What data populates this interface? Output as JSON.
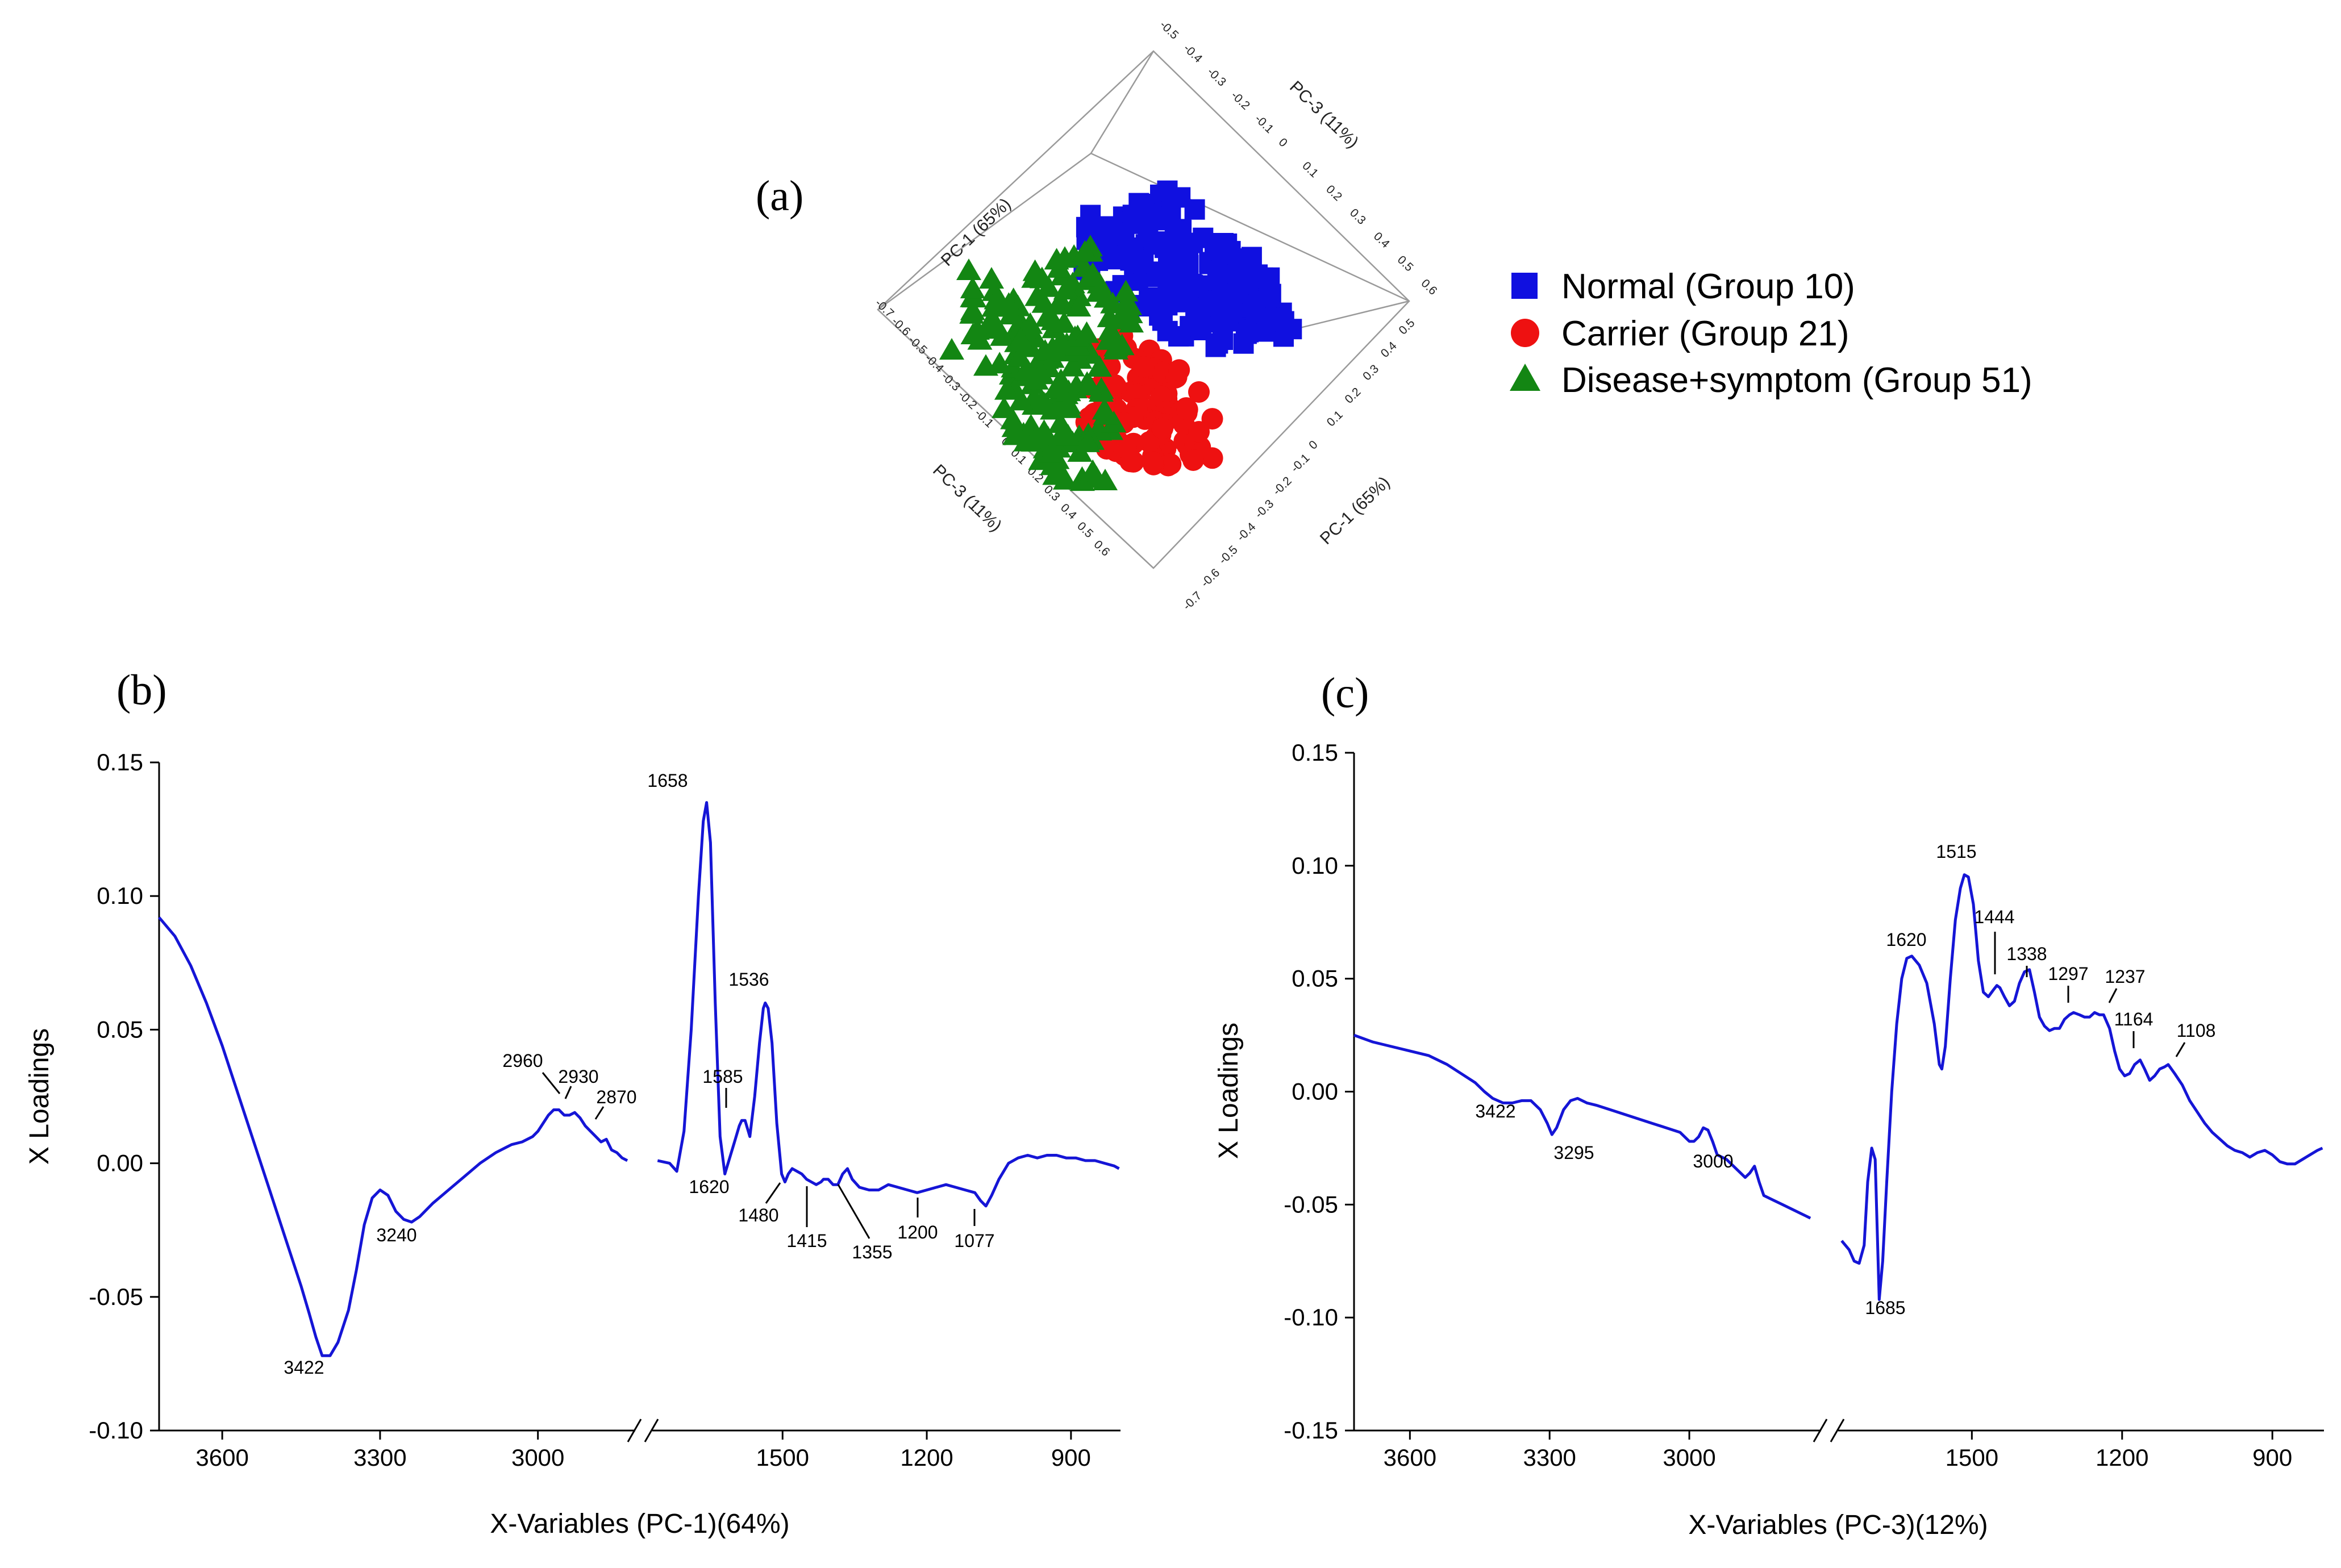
{
  "panel_labels": [
    "(a)",
    "(b)",
    "(c)"
  ],
  "legend": [
    {
      "label": "Normal (Group 10)",
      "color": "#1010e0",
      "marker": "square"
    },
    {
      "label": "Carrier (Group 21)",
      "color": "#ee1111",
      "marker": "circle"
    },
    {
      "label": "Disease+symptom (Group 51)",
      "color": "#138613",
      "marker": "triangle"
    }
  ],
  "chart_data": [
    {
      "type": "scatter",
      "panel": "(a)",
      "axes_labels": {
        "pc1_top": "PC-1 (65%)",
        "pc3_top": "PC-3 (11%)",
        "pc3_bottom": "PC-3 (11%)",
        "pc1_right": "PC-1 (65%)"
      },
      "tick_labels_top": [
        "-0.5",
        "-0.4",
        "-0.3",
        "-0.2",
        "-0.1",
        "0",
        "0.1",
        "0.2",
        "0.3",
        "0.4",
        "0.5",
        "0.6"
      ],
      "tick_labels_right": [
        "0.5",
        "0.4",
        "0.3",
        "0.2",
        "0.1",
        "0",
        "-0.1",
        "-0.2",
        "-0.3",
        "-0.4",
        "-0.5",
        "-0.6",
        "-0.7"
      ],
      "tick_labels_left": [
        "-0.7",
        "-0.6",
        "-0.5",
        "-0.4",
        "-0.3",
        "-0.2",
        "-0.1",
        "0",
        "0.1",
        "0.2",
        "0.3",
        "0.4",
        "0.5",
        "0.6"
      ],
      "series": [
        {
          "name": "Normal (Group 10)",
          "color": "#1010e0",
          "marker": "square"
        },
        {
          "name": "Carrier (Group 21)",
          "color": "#ee1111",
          "marker": "circle"
        },
        {
          "name": "Disease+symptom (Group 51)",
          "color": "#138613",
          "marker": "triangle"
        }
      ]
    },
    {
      "type": "line",
      "panel": "(b)",
      "xlabel": "X-Variables (PC-1)(64%)",
      "ylabel": "X Loadings",
      "ylim": [
        -0.1,
        0.15
      ],
      "yticks": [
        "0.15",
        "0.10",
        "0.05",
        "0.00",
        "-0.05",
        "-0.10"
      ],
      "xticks": [
        "3600",
        "3300",
        "3000",
        "1500",
        "1200",
        "900"
      ],
      "segments": [
        {
          "x": [
            3720,
            3690,
            3660,
            3630,
            3600,
            3570,
            3540,
            3510,
            3480,
            3450,
            3435,
            3422,
            3410,
            3395,
            3380,
            3360,
            3345,
            3330,
            3315,
            3300,
            3285,
            3270,
            3255,
            3240,
            3225,
            3200,
            3170,
            3140,
            3110,
            3080,
            3050,
            3030,
            3010,
            3000,
            2990,
            2980,
            2970,
            2960,
            2950,
            2940,
            2930,
            2920,
            2910,
            2900,
            2890,
            2880,
            2870,
            2860,
            2850,
            2840,
            2830
          ],
          "y": [
            0.092,
            0.085,
            0.074,
            0.06,
            0.044,
            0.026,
            0.008,
            -0.01,
            -0.028,
            -0.046,
            -0.056,
            -0.065,
            -0.072,
            -0.072,
            -0.067,
            -0.055,
            -0.04,
            -0.023,
            -0.013,
            -0.01,
            -0.012,
            -0.018,
            -0.021,
            -0.022,
            -0.02,
            -0.015,
            -0.01,
            -0.005,
            0.0,
            0.004,
            0.007,
            0.008,
            0.01,
            0.012,
            0.015,
            0.018,
            0.02,
            0.02,
            0.018,
            0.018,
            0.019,
            0.017,
            0.014,
            0.012,
            0.01,
            0.008,
            0.009,
            0.005,
            0.004,
            0.002,
            0.001
          ]
        },
        {
          "x": [
            1760,
            1735,
            1720,
            1705,
            1690,
            1675,
            1665,
            1658,
            1650,
            1640,
            1630,
            1620,
            1610,
            1600,
            1590,
            1585,
            1578,
            1568,
            1558,
            1548,
            1540,
            1536,
            1530,
            1522,
            1512,
            1502,
            1495,
            1488,
            1480,
            1470,
            1460,
            1450,
            1440,
            1430,
            1420,
            1415,
            1405,
            1395,
            1385,
            1375,
            1365,
            1355,
            1340,
            1320,
            1300,
            1280,
            1260,
            1240,
            1220,
            1200,
            1180,
            1160,
            1140,
            1120,
            1100,
            1088,
            1077,
            1065,
            1050,
            1030,
            1010,
            990,
            970,
            950,
            930,
            910,
            890,
            870,
            850,
            830,
            810,
            800
          ],
          "y": [
            0.001,
            0.0,
            -0.003,
            0.012,
            0.05,
            0.1,
            0.128,
            0.135,
            0.12,
            0.06,
            0.01,
            -0.004,
            0.002,
            0.008,
            0.014,
            0.016,
            0.016,
            0.01,
            0.025,
            0.045,
            0.058,
            0.06,
            0.058,
            0.045,
            0.015,
            -0.004,
            -0.007,
            -0.004,
            -0.002,
            -0.003,
            -0.004,
            -0.006,
            -0.007,
            -0.008,
            -0.007,
            -0.006,
            -0.006,
            -0.008,
            -0.008,
            -0.004,
            -0.002,
            -0.006,
            -0.009,
            -0.01,
            -0.01,
            -0.008,
            -0.009,
            -0.01,
            -0.011,
            -0.01,
            -0.009,
            -0.008,
            -0.009,
            -0.01,
            -0.011,
            -0.014,
            -0.016,
            -0.012,
            -0.006,
            0.0,
            0.002,
            0.003,
            0.002,
            0.003,
            0.003,
            0.002,
            0.002,
            0.001,
            0.001,
            0.0,
            -0.001,
            -0.002
          ]
        }
      ],
      "annotations": [
        "1658",
        "1536",
        "2960",
        "2930",
        "2870",
        "1585",
        "3240",
        "3422",
        "1620",
        "1480",
        "1415",
        "1355",
        "1200",
        "1077"
      ]
    },
    {
      "type": "line",
      "panel": "(c)",
      "xlabel": "X-Variables (PC-3)(12%)",
      "ylabel": "X Loadings",
      "ylim": [
        -0.15,
        0.15
      ],
      "yticks": [
        "0.15",
        "0.10",
        "0.05",
        "0.00",
        "-0.05",
        "-0.10",
        "-0.15"
      ],
      "xticks": [
        "3600",
        "3300",
        "3000",
        "1500",
        "1200",
        "900"
      ],
      "segments": [
        {
          "x": [
            3720,
            3680,
            3640,
            3600,
            3560,
            3520,
            3490,
            3460,
            3440,
            3422,
            3400,
            3380,
            3360,
            3340,
            3320,
            3305,
            3295,
            3285,
            3270,
            3255,
            3240,
            3220,
            3200,
            3170,
            3140,
            3110,
            3080,
            3050,
            3020,
            3000,
            2990,
            2980,
            2970,
            2960,
            2950,
            2940,
            2920,
            2900,
            2880,
            2870,
            2860,
            2850,
            2840,
            2820,
            2800,
            2780,
            2760,
            2740
          ],
          "y": [
            0.025,
            0.022,
            0.02,
            0.018,
            0.016,
            0.012,
            0.008,
            0.004,
            0.0,
            -0.003,
            -0.005,
            -0.005,
            -0.004,
            -0.004,
            -0.008,
            -0.014,
            -0.019,
            -0.016,
            -0.008,
            -0.004,
            -0.003,
            -0.005,
            -0.006,
            -0.008,
            -0.01,
            -0.012,
            -0.014,
            -0.016,
            -0.018,
            -0.022,
            -0.022,
            -0.02,
            -0.016,
            -0.017,
            -0.022,
            -0.028,
            -0.03,
            -0.034,
            -0.038,
            -0.036,
            -0.033,
            -0.04,
            -0.046,
            -0.048,
            -0.05,
            -0.052,
            -0.054,
            -0.056
          ]
        },
        {
          "x": [
            1760,
            1745,
            1735,
            1725,
            1715,
            1708,
            1700,
            1693,
            1685,
            1678,
            1670,
            1660,
            1650,
            1640,
            1630,
            1620,
            1605,
            1590,
            1575,
            1565,
            1560,
            1553,
            1543,
            1533,
            1523,
            1515,
            1507,
            1497,
            1487,
            1477,
            1467,
            1457,
            1450,
            1444,
            1435,
            1425,
            1415,
            1405,
            1395,
            1385,
            1375,
            1365,
            1355,
            1345,
            1335,
            1325,
            1315,
            1305,
            1297,
            1285,
            1275,
            1265,
            1255,
            1245,
            1237,
            1225,
            1215,
            1205,
            1195,
            1185,
            1175,
            1164,
            1155,
            1145,
            1135,
            1125,
            1115,
            1108,
            1095,
            1080,
            1065,
            1050,
            1035,
            1020,
            1005,
            990,
            975,
            960,
            945,
            930,
            915,
            900,
            885,
            870,
            855,
            840,
            825,
            810,
            800
          ],
          "y": [
            -0.066,
            -0.07,
            -0.075,
            -0.076,
            -0.068,
            -0.04,
            -0.025,
            -0.03,
            -0.092,
            -0.075,
            -0.04,
            0.0,
            0.03,
            0.05,
            0.059,
            0.06,
            0.056,
            0.048,
            0.03,
            0.012,
            0.01,
            0.02,
            0.05,
            0.076,
            0.09,
            0.096,
            0.095,
            0.083,
            0.058,
            0.044,
            0.042,
            0.045,
            0.047,
            0.046,
            0.042,
            0.038,
            0.04,
            0.048,
            0.053,
            0.054,
            0.044,
            0.033,
            0.029,
            0.027,
            0.028,
            0.028,
            0.032,
            0.034,
            0.035,
            0.034,
            0.033,
            0.033,
            0.035,
            0.034,
            0.034,
            0.028,
            0.018,
            0.01,
            0.007,
            0.008,
            0.012,
            0.014,
            0.01,
            0.005,
            0.007,
            0.01,
            0.011,
            0.012,
            0.008,
            0.003,
            -0.004,
            -0.009,
            -0.014,
            -0.018,
            -0.021,
            -0.024,
            -0.026,
            -0.027,
            -0.029,
            -0.027,
            -0.026,
            -0.028,
            -0.031,
            -0.032,
            -0.032,
            -0.03,
            -0.028,
            -0.026,
            -0.025
          ]
        }
      ],
      "annotations": [
        "1515",
        "1620",
        "1444",
        "1338",
        "1297",
        "1237",
        "1164",
        "1108",
        "3422",
        "3295",
        "3000",
        "1685"
      ]
    }
  ]
}
